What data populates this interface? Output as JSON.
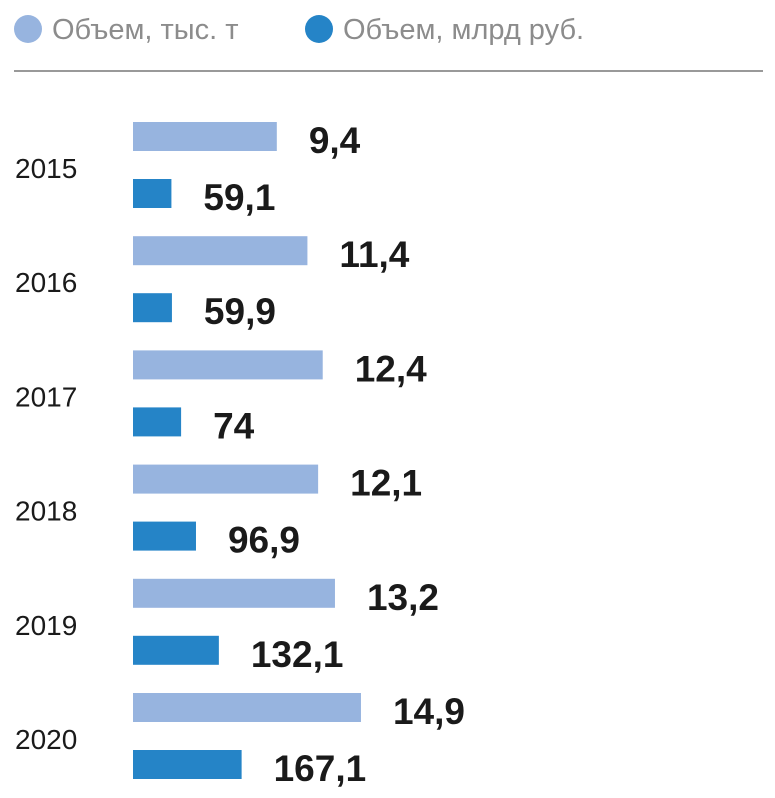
{
  "chart_data": {
    "type": "bar",
    "orientation": "horizontal",
    "categories": [
      "2015",
      "2016",
      "2017",
      "2018",
      "2019",
      "2020"
    ],
    "series": [
      {
        "name": "Объем, тыс. т",
        "color": "#97b4df",
        "values": [
          9.4,
          11.4,
          12.4,
          12.1,
          13.2,
          14.9
        ],
        "labels": [
          "9,4",
          "11,4",
          "12,4",
          "12,1",
          "13,2",
          "14,9"
        ]
      },
      {
        "name": "Объем, млрд руб.",
        "color": "#2584c7",
        "values": [
          59.1,
          59.9,
          74,
          96.9,
          132.1,
          167.1
        ],
        "labels": [
          "59,1",
          "59,9",
          "74",
          "96,9",
          "132,1",
          "167,1"
        ]
      }
    ],
    "legend_placement": "top-left",
    "grid": false,
    "axes_visible": false
  }
}
